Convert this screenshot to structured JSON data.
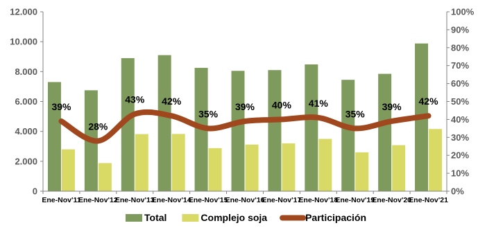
{
  "chart_data": {
    "type": "bar",
    "categories": [
      "Ene-Nov'11",
      "Ene-Nov'12",
      "Ene-Nov'13",
      "Ene-Nov'14",
      "Ene-Nov'15",
      "Ene-Nov'16",
      "Ene-Nov'17",
      "Ene-Nov'18",
      "Ene-Nov'19",
      "Ene-Nov'20",
      "Ene-Nov'21"
    ],
    "series": [
      {
        "name": "Total",
        "type": "bar",
        "axis": "left",
        "color": "#7F9A5D",
        "values": [
          7300,
          6750,
          8900,
          9100,
          8250,
          8050,
          8100,
          8480,
          7450,
          7850,
          9880
        ]
      },
      {
        "name": "Complejo soja",
        "type": "bar",
        "axis": "left",
        "color": "#D9DA66",
        "values": [
          2800,
          1880,
          3820,
          3830,
          2880,
          3120,
          3200,
          3500,
          2600,
          3080,
          4160
        ]
      },
      {
        "name": "Participación",
        "type": "line",
        "axis": "right",
        "color": "#A0471E",
        "values": [
          39,
          28,
          43,
          42,
          35,
          39,
          40,
          41,
          35,
          39,
          42
        ],
        "labels": [
          "39%",
          "28%",
          "43%",
          "42%",
          "35%",
          "39%",
          "40%",
          "41%",
          "35%",
          "39%",
          "42%"
        ]
      }
    ],
    "y_left": {
      "ylim": [
        0,
        12000
      ],
      "ticks": [
        "0",
        "2.000",
        "4.000",
        "6.000",
        "8.000",
        "10.000",
        "12.000"
      ]
    },
    "y_right": {
      "ylim": [
        0,
        100
      ],
      "ticks": [
        "0%",
        "10%",
        "20%",
        "30%",
        "40%",
        "50%",
        "60%",
        "70%",
        "80%",
        "90%",
        "100%"
      ]
    },
    "grid": false,
    "legend_position": "bottom"
  }
}
